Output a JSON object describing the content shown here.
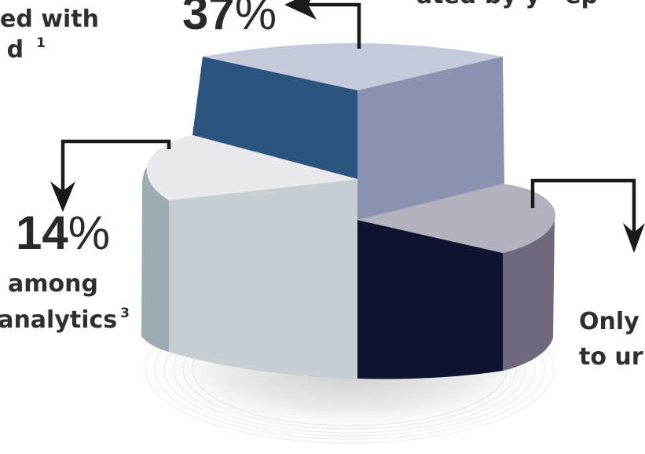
{
  "labels": {
    "top_left": {
      "line1": "ed with",
      "line2": "d",
      "footnote": "1"
    },
    "top_right": "ated by y   ep",
    "left": {
      "line1": "among",
      "line2": "analytics",
      "footnote": "3"
    },
    "right": {
      "line1": "Only",
      "line2": "to ur"
    }
  },
  "callouts": {
    "top": {
      "value": "37",
      "unit": "%"
    },
    "left": {
      "value": "14",
      "unit": "%"
    }
  },
  "chart_data": {
    "type": "pie",
    "style": "3d",
    "slices": [
      {
        "value": 37,
        "exploded": true,
        "colors": {
          "top": "#c5c9dc",
          "face": "#2b5580",
          "side": "#8a92b0"
        }
      },
      {
        "value": 14,
        "colors": {
          "top": "#e9e9ec",
          "face": "#c8cdd2",
          "side": "#9dabb3"
        }
      },
      {
        "colors": {
          "top": "#b4b1be",
          "face": "#121331",
          "side": "#6e697c"
        }
      }
    ],
    "arrow_color": "#1a1a1a"
  }
}
